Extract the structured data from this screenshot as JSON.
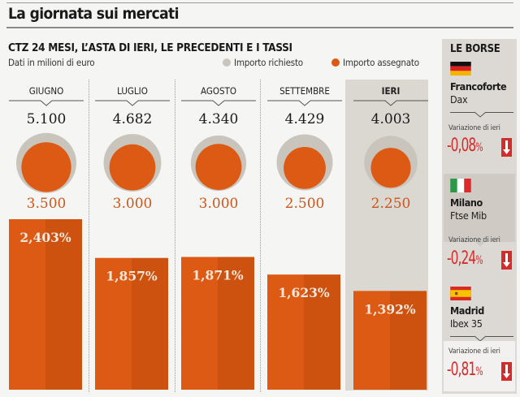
{
  "header": {
    "title": "La giornata sui mercati"
  },
  "chart_data": {
    "type": "bar",
    "title": "CTZ 24 MESI,  L’ASTA DI IERI, LE PRECEDENTI E I TASSI",
    "subtitle": "Dati in milioni di euro",
    "legend": [
      {
        "name": "Importo richiesto",
        "color": "#c9c5bd"
      },
      {
        "name": "Importo assegnato",
        "color": "#dc5a14"
      }
    ],
    "legend_position": "top-right",
    "categories": [
      "GIUGNO",
      "LUGLIO",
      "AGOSTO",
      "SETTEMBRE",
      "IERI"
    ],
    "highlight_category": "IERI",
    "series": [
      {
        "name": "Importo richiesto",
        "values": [
          5100,
          4682,
          4340,
          4429,
          4003
        ],
        "labels": [
          "5.100",
          "4.682",
          "4.340",
          "4.429",
          "4.003"
        ]
      },
      {
        "name": "Importo assegnato",
        "values": [
          3500,
          3000,
          3000,
          2500,
          2250
        ],
        "labels": [
          "3.500",
          "3.000",
          "3.000",
          "2.500",
          "2.250"
        ]
      },
      {
        "name": "Tasso",
        "values": [
          2.403,
          1.857,
          1.871,
          1.623,
          1.392
        ],
        "labels": [
          "2,403%",
          "1,857%",
          "1,871%",
          "1,623%",
          "1,392%"
        ]
      }
    ],
    "xlabel": "",
    "ylabel": "",
    "grid": false
  },
  "borse": {
    "title": "LE BORSE",
    "variation_label": "Variazione di ieri",
    "markets": [
      {
        "city": "Francoforte",
        "index": "Dax",
        "variation": "-0,08",
        "unit": "%",
        "direction": "down",
        "flag": "germany-flag"
      },
      {
        "city": "Milano",
        "index": "Ftse Mib",
        "variation": "-0,24",
        "unit": "%",
        "direction": "down",
        "flag": "italy-flag"
      },
      {
        "city": "Madrid",
        "index": "Ibex 35",
        "variation": "-0,81",
        "unit": "%",
        "direction": "down",
        "flag": "spain-flag"
      }
    ]
  },
  "colors": {
    "accent": "#dc5a14",
    "accent_dark": "#cd5210",
    "requested": "#c9c5bd",
    "negative": "#d42b2b",
    "highlight_bg": "#dbd8d2"
  }
}
